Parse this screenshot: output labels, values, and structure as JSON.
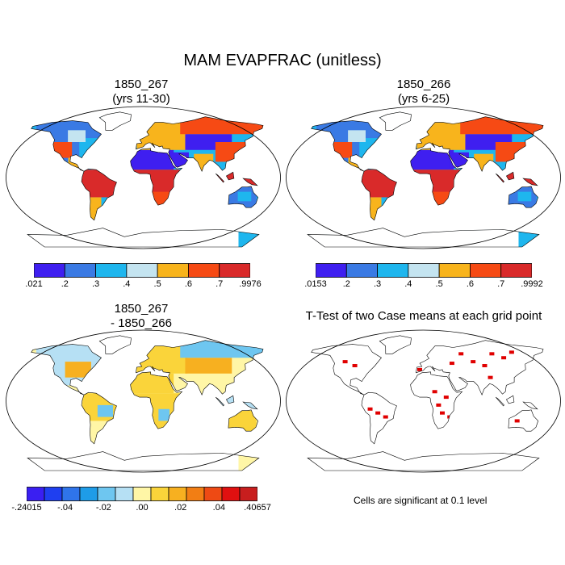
{
  "figure": {
    "title": "MAM EVAPFRAC (unitless)"
  },
  "panels": [
    {
      "id": "p1",
      "title_line1": "1850_267",
      "title_line2": "(yrs 11-30)"
    },
    {
      "id": "p2",
      "title_line1": "1850_266",
      "title_line2": "(yrs 6-25)"
    },
    {
      "id": "p3",
      "title_line1": "1850_267",
      "title_line2": "- 1850_266"
    },
    {
      "id": "p4",
      "title_line1": "T-Test of two Case means at each grid point",
      "title_line2": ""
    }
  ],
  "note": "Cells are significant at 0.1 level",
  "chart_data": [
    {
      "type": "heatmap",
      "title": "1850_267 (yrs 11-30)",
      "colorbar": {
        "labels": [
          ".021",
          ".2",
          ".3",
          ".4",
          ".5",
          ".6",
          ".7",
          ".9976"
        ],
        "colors": [
          "#3f1ff0",
          "#3a7ae4",
          "#1eb6ee",
          "#c4e4f0",
          "#f8b41c",
          "#f64a14",
          "#d92a2a"
        ]
      }
    },
    {
      "type": "heatmap",
      "title": "1850_266 (yrs 6-25)",
      "colorbar": {
        "labels": [
          ".0153",
          ".2",
          ".3",
          ".4",
          ".5",
          ".6",
          ".7",
          ".9992"
        ],
        "colors": [
          "#3f1ff0",
          "#3a7ae4",
          "#1eb6ee",
          "#c4e4f0",
          "#f8b41c",
          "#f64a14",
          "#d92a2a"
        ]
      }
    },
    {
      "type": "heatmap",
      "title": "1850_267 - 1850_266",
      "colorbar": {
        "labels": [
          "-.24015",
          "-.04",
          "-.02",
          ".00",
          ".02",
          ".04",
          ".40657"
        ],
        "colors": [
          "#3a1ff2",
          "#1f3ff0",
          "#2f74ea",
          "#1e9ce8",
          "#6ec6f0",
          "#b6e0f4",
          "#fff6a6",
          "#fad43a",
          "#f7b020",
          "#f27e14",
          "#ee4a14",
          "#e01010",
          "#c81e1e"
        ]
      }
    },
    {
      "type": "heatmap",
      "title": "T-Test of two Case means at each grid point",
      "significant_color": "#e00000"
    }
  ]
}
